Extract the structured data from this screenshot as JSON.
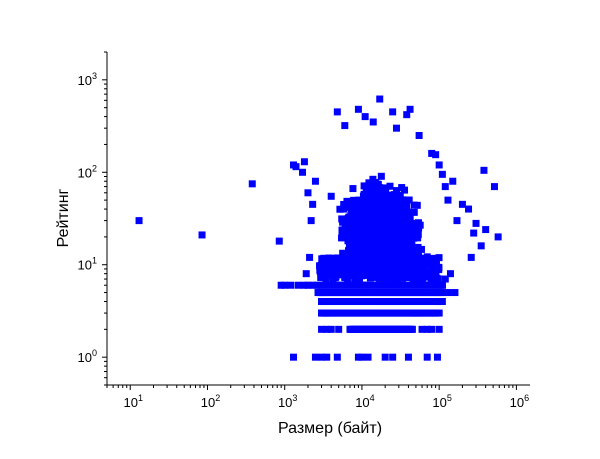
{
  "chart_data": {
    "type": "scatter",
    "xlabel": "Размер (байт)",
    "ylabel": "Рейтинг",
    "x_scale": "log",
    "y_scale": "log",
    "xlim": [
      5,
      1500000
    ],
    "ylim": [
      0.5,
      2000
    ],
    "x_ticks": [
      {
        "value": 10,
        "base": "10",
        "exp": "1"
      },
      {
        "value": 100,
        "base": "10",
        "exp": "2"
      },
      {
        "value": 1000,
        "base": "10",
        "exp": "3"
      },
      {
        "value": 10000,
        "base": "10",
        "exp": "4"
      },
      {
        "value": 100000,
        "base": "10",
        "exp": "5"
      },
      {
        "value": 1000000,
        "base": "10",
        "exp": "6"
      }
    ],
    "y_ticks": [
      {
        "value": 1,
        "base": "10",
        "exp": "0"
      },
      {
        "value": 10,
        "base": "10",
        "exp": "1"
      },
      {
        "value": 100,
        "base": "10",
        "exp": "2"
      },
      {
        "value": 1000,
        "base": "10",
        "exp": "3"
      }
    ],
    "grid": false,
    "legend": "none",
    "marker_color": "#0000ff",
    "marker": "square",
    "series": [
      {
        "points": [
          [
            13,
            30
          ],
          [
            85,
            21
          ],
          [
            380,
            75
          ],
          [
            850,
            18
          ],
          [
            1300,
            120
          ],
          [
            1400,
            115
          ],
          [
            1800,
            130
          ],
          [
            2000,
            60
          ],
          [
            2200,
            30
          ],
          [
            2500,
            80
          ],
          [
            1700,
            100
          ],
          [
            1900,
            8
          ],
          [
            2300,
            45
          ],
          [
            2100,
            12
          ],
          [
            4000,
            55
          ],
          [
            4800,
            450
          ],
          [
            6000,
            320
          ],
          [
            9000,
            480
          ],
          [
            11000,
            400
          ],
          [
            14000,
            350
          ],
          [
            17000,
            620
          ],
          [
            25000,
            450
          ],
          [
            28000,
            300
          ],
          [
            38000,
            420
          ],
          [
            42000,
            480
          ],
          [
            55000,
            250
          ],
          [
            80000,
            160
          ],
          [
            90000,
            155
          ],
          [
            100000,
            120
          ],
          [
            110000,
            95
          ],
          [
            120000,
            70
          ],
          [
            130000,
            50
          ],
          [
            150000,
            80
          ],
          [
            170000,
            30
          ],
          [
            200000,
            45
          ],
          [
            240000,
            40
          ],
          [
            260000,
            12
          ],
          [
            280000,
            22
          ],
          [
            300000,
            28
          ],
          [
            350000,
            16
          ],
          [
            380000,
            105
          ],
          [
            400000,
            24
          ],
          [
            520000,
            70
          ],
          [
            580000,
            20
          ],
          [
            160000,
            5
          ],
          [
            120000,
            7
          ],
          [
            140000,
            8
          ],
          [
            110000,
            6
          ],
          [
            1300,
            1
          ],
          [
            2500,
            1
          ],
          [
            3000,
            1
          ],
          [
            3500,
            1
          ],
          [
            4800,
            1
          ],
          [
            9000,
            1
          ],
          [
            10000,
            1
          ],
          [
            12000,
            1
          ],
          [
            20000,
            1
          ],
          [
            25000,
            1
          ],
          [
            40000,
            1
          ],
          [
            70000,
            1
          ],
          [
            95000,
            1
          ],
          [
            3000,
            2
          ],
          [
            3500,
            2
          ],
          [
            4000,
            2
          ],
          [
            5000,
            2
          ],
          [
            60000,
            2
          ],
          [
            70000,
            2
          ],
          [
            80000,
            2
          ],
          [
            100000,
            2
          ],
          [
            3000,
            3
          ],
          [
            3500,
            3
          ],
          [
            50000,
            3
          ],
          [
            90000,
            3
          ],
          [
            100000,
            3
          ],
          [
            3000,
            4
          ],
          [
            100000,
            4
          ],
          [
            3000,
            5
          ],
          [
            130000,
            5
          ],
          [
            900,
            6
          ],
          [
            1000,
            6
          ],
          [
            1200,
            6
          ],
          [
            1500,
            6
          ],
          [
            1800,
            6
          ],
          [
            2000,
            6
          ],
          [
            2300,
            6
          ],
          [
            2600,
            6
          ]
        ],
        "dense_region": {
          "description_hidden": true,
          "x_range": [
            2700,
            110000
          ],
          "y_range": [
            2,
            200
          ],
          "row_values_y": [
            2,
            3,
            4,
            5,
            6
          ],
          "row_x_ranges": [
            [
              7000,
              45000
            ],
            [
              3000,
              90000
            ],
            [
              3000,
              110000
            ],
            [
              2700,
              110000
            ],
            [
              2800,
              110000
            ]
          ]
        }
      }
    ]
  }
}
